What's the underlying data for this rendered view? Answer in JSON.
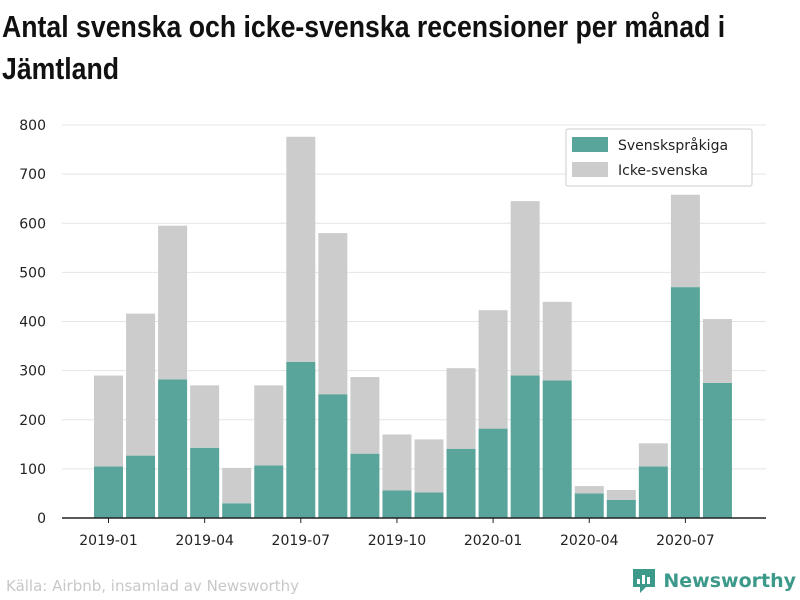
{
  "title": "Antal svenska och icke-svenska recensioner per månad i Jämtland",
  "source": "Källa: Airbnb, insamlad av Newsworthy",
  "brand": "Newsworthy",
  "colors": {
    "swedish": "#5aa59b",
    "non_swedish": "#cccccc",
    "brand": "#3d9a8b"
  },
  "chart_data": {
    "type": "bar",
    "stacked": true,
    "categories": [
      "2019-01",
      "2019-02",
      "2019-03",
      "2019-04",
      "2019-05",
      "2019-06",
      "2019-07",
      "2019-08",
      "2019-09",
      "2019-10",
      "2019-11",
      "2019-12",
      "2020-01",
      "2020-02",
      "2020-03",
      "2020-04",
      "2020-05",
      "2020-06",
      "2020-07",
      "2020-08"
    ],
    "x_tick_labels": [
      "2019-01",
      "2019-04",
      "2019-07",
      "2019-10",
      "2020-01",
      "2020-04",
      "2020-07"
    ],
    "series": [
      {
        "name": "Svenskspråkiga",
        "values": [
          105,
          127,
          282,
          143,
          30,
          107,
          318,
          252,
          131,
          56,
          52,
          141,
          182,
          290,
          280,
          50,
          37,
          105,
          470,
          275
        ]
      },
      {
        "name": "Icke-svenska",
        "values": [
          185,
          289,
          313,
          127,
          72,
          163,
          458,
          328,
          156,
          114,
          108,
          164,
          241,
          355,
          160,
          15,
          20,
          47,
          188,
          130
        ]
      }
    ],
    "ylim": [
      0,
      800
    ],
    "y_ticks": [
      0,
      100,
      200,
      300,
      400,
      500,
      600,
      700,
      800
    ],
    "grid": true,
    "legend_position": "top-right"
  }
}
